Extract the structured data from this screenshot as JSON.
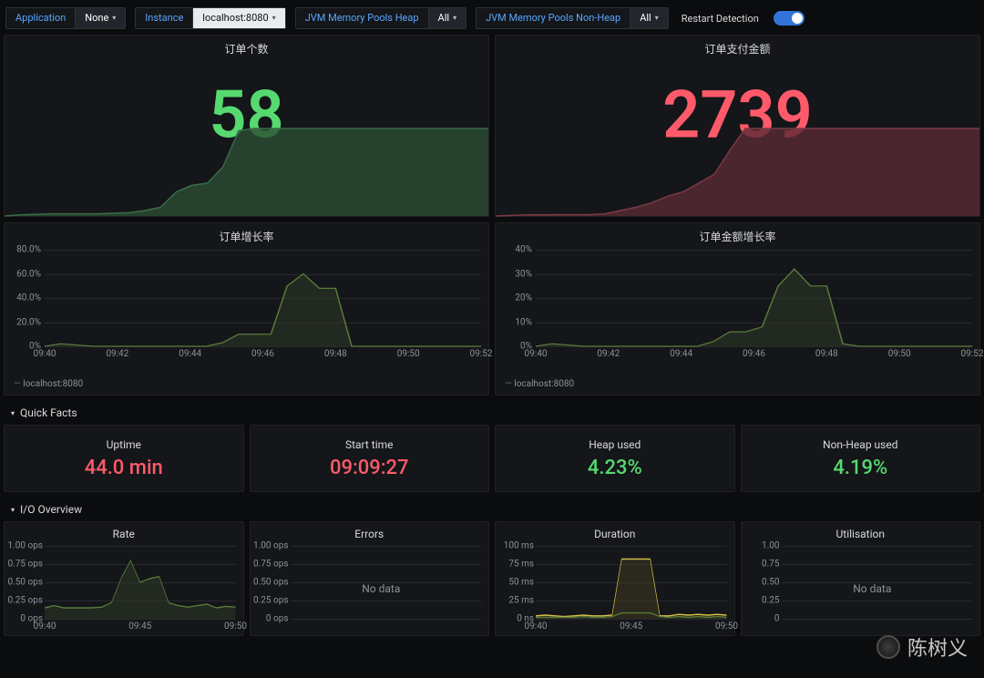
{
  "topbar": {
    "filters": [
      {
        "label": "Application",
        "value": "None",
        "light": false
      },
      {
        "label": "Instance",
        "value": "localhost:8080",
        "light": true
      },
      {
        "label": "JVM Memory Pools Heap",
        "value": "All",
        "light": false
      },
      {
        "label": "JVM Memory Pools Non-Heap",
        "value": "All",
        "light": false
      }
    ],
    "restart_label": "Restart Detection",
    "toggle_on": true
  },
  "big_panels": [
    {
      "title": "订单个数",
      "value": "58",
      "color": "#56d96f",
      "sparkline": {
        "fill": "#2a4d33",
        "stroke": "#3a6b47",
        "points": [
          0,
          0.01,
          0.015,
          0.02,
          0.02,
          0.02,
          0.02,
          0.025,
          0.03,
          0.05,
          0.08,
          0.22,
          0.28,
          0.3,
          0.45,
          0.78,
          0.8,
          0.8,
          0.8,
          0.8,
          0.8,
          0.8,
          0.8,
          0.8,
          0.8,
          0.8,
          0.8,
          0.8,
          0.8,
          0.8,
          0.8,
          0.8
        ]
      }
    },
    {
      "title": "订单支付金额",
      "value": "2739",
      "color": "#ff5a6a",
      "sparkline": {
        "fill": "#5a2a33",
        "stroke": "#7a3a45",
        "points": [
          0,
          0.005,
          0.01,
          0.01,
          0.012,
          0.012,
          0.012,
          0.02,
          0.05,
          0.08,
          0.12,
          0.18,
          0.22,
          0.3,
          0.38,
          0.6,
          0.8,
          0.8,
          0.8,
          0.8,
          0.8,
          0.8,
          0.8,
          0.8,
          0.8,
          0.8,
          0.8,
          0.8,
          0.8,
          0.8,
          0.8,
          0.8
        ]
      }
    }
  ],
  "rate_panels": [
    {
      "title": "订单增长率",
      "yticks": [
        "0%",
        "20.0%",
        "40.0%",
        "60.0%",
        "80.0%"
      ],
      "ylim": [
        0,
        80
      ],
      "xticks": [
        "09:40",
        "09:42",
        "09:44",
        "09:46",
        "09:48",
        "09:50",
        "09:52"
      ],
      "legend": "localhost:8080",
      "stroke": "#5a7a3a",
      "fill": "#2e3a27",
      "series": [
        0,
        2,
        1,
        0,
        0,
        0,
        0,
        0,
        0,
        0,
        0,
        3,
        10,
        10,
        10,
        50,
        60,
        48,
        48,
        0,
        0,
        0,
        0,
        0,
        0,
        0,
        0,
        0
      ]
    },
    {
      "title": "订单金额增长率",
      "yticks": [
        "0%",
        "10%",
        "20%",
        "30%",
        "40%"
      ],
      "ylim": [
        0,
        40
      ],
      "xticks": [
        "09:40",
        "09:42",
        "09:44",
        "09:46",
        "09:48",
        "09:50",
        "09:52"
      ],
      "legend": "localhost:8080",
      "stroke": "#5a7a3a",
      "fill": "#2e3a27",
      "series": [
        0,
        1,
        0.5,
        0,
        0,
        0,
        0,
        0,
        0,
        0,
        0,
        2,
        6,
        6,
        8,
        25,
        32,
        25,
        25,
        1,
        0,
        0,
        0,
        0,
        0,
        0,
        0,
        0
      ]
    }
  ],
  "sections": {
    "quick_facts": "Quick Facts",
    "io_overview": "I/O Overview"
  },
  "quick_facts": [
    {
      "label": "Uptime",
      "value": "44.0 min",
      "color": "#ff5a6a"
    },
    {
      "label": "Start time",
      "value": "09:09:27",
      "color": "#ff5a6a"
    },
    {
      "label": "Heap used",
      "value": "4.23%",
      "color": "#56d96f"
    },
    {
      "label": "Non-Heap used",
      "value": "4.19%",
      "color": "#56d96f"
    }
  ],
  "io_panels": [
    {
      "title": "Rate",
      "yticks": [
        "0 ops",
        "0.25 ops",
        "0.50 ops",
        "0.75 ops",
        "1.00 ops"
      ],
      "ylim": [
        0,
        1
      ],
      "xticks": [
        "09:40",
        "09:45",
        "09:50"
      ],
      "nodata": false,
      "series": [
        {
          "stroke": "#5a7a3a",
          "fill": "#2e3a27",
          "points": [
            0.15,
            0.18,
            0.15,
            0.15,
            0.15,
            0.15,
            0.16,
            0.22,
            0.55,
            0.8,
            0.5,
            0.55,
            0.58,
            0.22,
            0.18,
            0.16,
            0.18,
            0.2,
            0.15,
            0.17,
            0.16
          ]
        }
      ]
    },
    {
      "title": "Errors",
      "yticks": [
        "0 ops",
        "0.25 ops",
        "0.50 ops",
        "0.75 ops",
        "1.00 ops"
      ],
      "ylim": [
        0,
        1
      ],
      "xticks": [],
      "nodata": true,
      "nodata_text": "No data",
      "series": []
    },
    {
      "title": "Duration",
      "yticks": [
        "0 ns",
        "25 ms",
        "50 ms",
        "75 ms",
        "100 ms"
      ],
      "ylim": [
        0,
        100
      ],
      "xticks": [
        "09:40",
        "09:45",
        "09:50"
      ],
      "nodata": false,
      "series": [
        {
          "stroke": "#d6c24a",
          "fill": "#3e3a20",
          "points": [
            4,
            5,
            4,
            3,
            4,
            5,
            4,
            4,
            5,
            82,
            82,
            82,
            82,
            4,
            4,
            6,
            5,
            6,
            5,
            6,
            5
          ]
        },
        {
          "stroke": "#5a7a3a",
          "fill": "none",
          "points": [
            2,
            2,
            2,
            2,
            2,
            3,
            2,
            2,
            3,
            8,
            8,
            8,
            8,
            3,
            2,
            3,
            2,
            3,
            2,
            3,
            2
          ]
        }
      ]
    },
    {
      "title": "Utilisation",
      "yticks": [
        "0",
        "0.25",
        "0.50",
        "0.75",
        "1.00"
      ],
      "ylim": [
        0,
        1
      ],
      "xticks": [],
      "nodata": true,
      "nodata_text": "No data",
      "series": []
    }
  ],
  "watermark": "陈树义",
  "style": {
    "bg": "#0b0c0e",
    "panel_bg": "#141619",
    "grid": "#262a2e",
    "text_muted": "#8e9297",
    "accent_green": "#56d96f",
    "accent_red": "#ff5a6a",
    "accent_yellow": "#d6c24a"
  }
}
